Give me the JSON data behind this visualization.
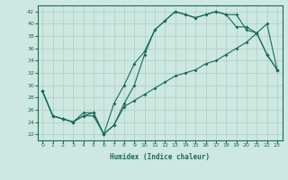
{
  "xlabel": "Humidex (Indice chaleur)",
  "background_color": "#cde8e0",
  "line_color": "#1a6b5a",
  "grid_color": "#a8cfc4",
  "xlim": [
    -0.5,
    23.5
  ],
  "ylim": [
    21.0,
    43.0
  ],
  "xticks": [
    0,
    1,
    2,
    3,
    4,
    5,
    6,
    7,
    8,
    9,
    10,
    11,
    12,
    13,
    14,
    15,
    16,
    17,
    18,
    19,
    20,
    21,
    22,
    23
  ],
  "yticks": [
    22,
    24,
    26,
    28,
    30,
    32,
    34,
    36,
    38,
    40,
    42
  ],
  "line1_x": [
    0,
    1,
    2,
    3,
    4,
    5,
    6,
    7,
    8,
    9,
    10,
    11,
    12,
    13,
    14,
    15,
    16,
    17,
    18,
    19,
    20,
    21,
    22,
    23
  ],
  "line1_y": [
    29,
    25,
    24.5,
    24,
    25.5,
    25.5,
    22,
    23.5,
    27,
    30,
    35,
    39,
    40.5,
    42,
    41.5,
    41,
    41.5,
    42,
    41.5,
    41.5,
    39,
    38.5,
    35,
    32.5
  ],
  "line2_x": [
    0,
    1,
    2,
    3,
    4,
    5,
    6,
    7,
    8,
    9,
    10,
    11,
    12,
    13,
    14,
    15,
    16,
    17,
    18,
    19,
    20,
    21,
    22,
    23
  ],
  "line2_y": [
    29,
    25,
    24.5,
    24,
    25,
    25.5,
    22,
    27,
    30,
    33.5,
    35.5,
    39,
    40.5,
    42,
    41.5,
    41,
    41.5,
    42,
    41.5,
    39.5,
    39.5,
    38.5,
    35,
    32.5
  ],
  "line3_x": [
    0,
    1,
    2,
    3,
    4,
    5,
    6,
    7,
    8,
    9,
    10,
    11,
    12,
    13,
    14,
    15,
    16,
    17,
    18,
    19,
    20,
    21,
    22,
    23
  ],
  "line3_y": [
    29,
    25,
    24.5,
    24,
    25,
    25,
    22,
    23.5,
    26.5,
    27.5,
    28.5,
    29.5,
    30.5,
    31.5,
    32,
    32.5,
    33.5,
    34,
    35,
    36,
    37,
    38.5,
    40,
    32.5
  ]
}
